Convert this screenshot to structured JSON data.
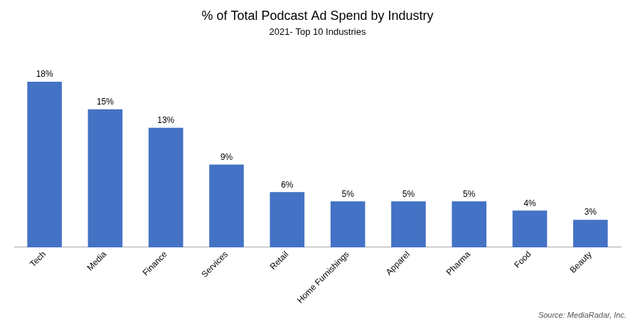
{
  "chart_data": {
    "type": "bar",
    "title": "% of Total Podcast Ad Spend by Industry",
    "subtitle": "2021- Top 10 Industries",
    "annotation": "Source: MediaRadar, Inc.",
    "categories": [
      "Tech",
      "Media",
      "Finance",
      "Services",
      "Retail",
      "Home Furnishings",
      "Apparel",
      "Pharma",
      "Food",
      "Beauty"
    ],
    "values": [
      18,
      15,
      13,
      9,
      6,
      5,
      5,
      5,
      4,
      3
    ],
    "value_labels": [
      "18%",
      "15%",
      "13%",
      "9%",
      "6%",
      "5%",
      "5%",
      "5%",
      "4%",
      "3%"
    ],
    "data_labels": true,
    "color": "#4472C4",
    "ylim": [
      0,
      22
    ],
    "tick_labels": "x",
    "grid": false
  }
}
